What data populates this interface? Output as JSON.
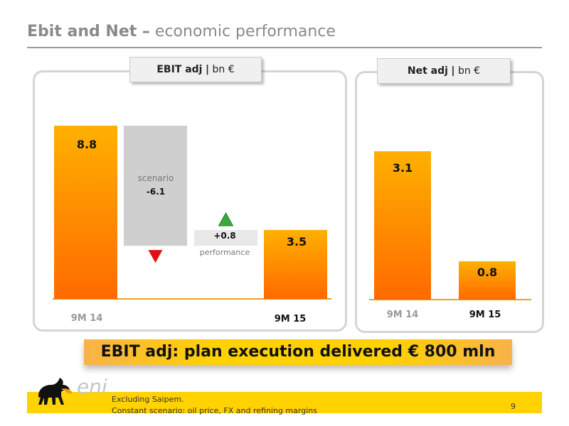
{
  "title": {
    "bold": "Ebit and Net –",
    "rest": "economic performance"
  },
  "ebit_panel": {
    "header_bold": "EBIT adj",
    "header_sep": "|",
    "header_unit": "bn €"
  },
  "net_panel": {
    "header_bold": "Net adj",
    "header_sep": "|",
    "header_unit": "bn €"
  },
  "banner": {
    "text": "EBIT adj: plan execution delivered € 800 mln"
  },
  "footnotes": [
    "Excluding Saipem.",
    "Constant scenario: oil price, FX and refining margins"
  ],
  "page_number": "9",
  "logo": {
    "text": "eni"
  },
  "colors": {
    "bar_top": "#ffb000",
    "bar_bottom": "#ff6a00",
    "scenario": "#cfcfcf",
    "performance": "#e8e8e8",
    "down_arrow": "#e01010",
    "up_arrow": "#3aa83a",
    "accent_yellow": "#ffd200"
  },
  "chart_data": [
    {
      "type": "bar",
      "subtype": "waterfall",
      "title": "EBIT adj | bn €",
      "unit": "bn €",
      "categories": [
        "9M 14",
        "scenario",
        "performance",
        "9M 15"
      ],
      "values": [
        8.8,
        -6.1,
        0.8,
        3.5
      ],
      "value_labels": [
        "8.8",
        "-6.1",
        "+0.8",
        "3.5"
      ],
      "category_labels_shown": [
        "9M 14",
        "",
        "",
        "9M 15"
      ],
      "inline_labels": [
        "",
        "scenario",
        "performance",
        ""
      ],
      "ylim": [
        0,
        10
      ]
    },
    {
      "type": "bar",
      "title": "Net adj | bn €",
      "unit": "bn €",
      "categories": [
        "9M 14",
        "9M 15"
      ],
      "values": [
        3.1,
        0.8
      ],
      "value_labels": [
        "3.1",
        "0.8"
      ],
      "ylim": [
        0,
        4
      ]
    }
  ]
}
